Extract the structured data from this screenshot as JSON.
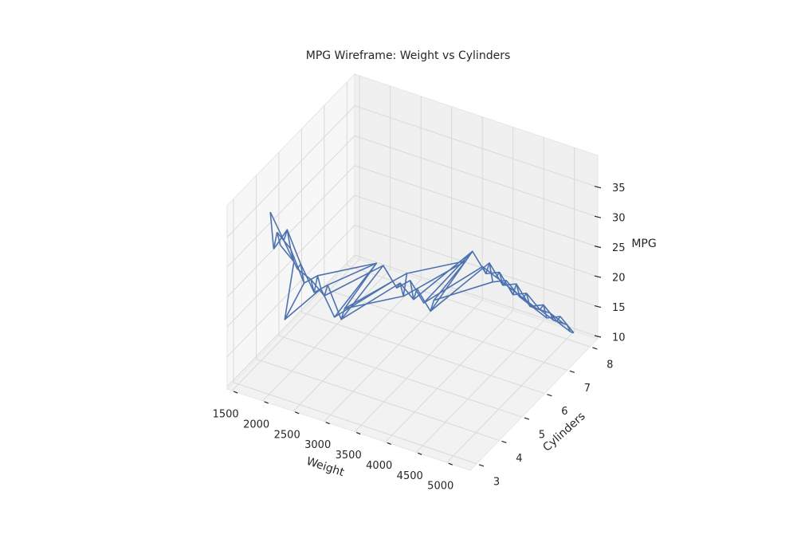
{
  "chart_data": {
    "type": "wireframe",
    "title": "MPG Wireframe: Weight vs Cylinders",
    "x_label": "Weight",
    "y_label": "Cylinders",
    "z_label": "MPG",
    "color": "#4c72b0",
    "grid": true,
    "xlim": [
      1420,
      5380
    ],
    "ylim": [
      2.72,
      8.34
    ],
    "zlim": [
      9.6,
      40.3
    ],
    "xticks": [
      1500,
      2000,
      2500,
      3000,
      3500,
      4000,
      4500,
      5000
    ],
    "yticks": [
      3,
      4,
      5,
      6,
      7,
      8
    ],
    "zticks": [
      10,
      15,
      20,
      25,
      30,
      35
    ],
    "x": [
      [
        1650,
        1870,
        2090,
        2310,
        2530,
        2750,
        2970,
        3190,
        3410,
        3630,
        3850,
        4070,
        4290,
        4510,
        4730,
        4950
      ],
      [
        1705,
        1925,
        2145,
        2365,
        2585,
        2805,
        3025,
        3245,
        3465,
        3685,
        3905,
        4125,
        4345,
        4565,
        4785,
        5005
      ],
      [
        1760,
        1980,
        2200,
        2420,
        2640,
        2860,
        3080,
        3300,
        3520,
        3740,
        3960,
        4180,
        4400,
        4620,
        4840,
        5060
      ],
      [
        1815,
        2035,
        2255,
        2475,
        2695,
        2915,
        3135,
        3355,
        3575,
        3795,
        4015,
        4235,
        4455,
        4675,
        4895,
        5115
      ]
    ],
    "y": [
      [
        4,
        4,
        4,
        4,
        4,
        6,
        6,
        6,
        6,
        8,
        8,
        8,
        8,
        8,
        8,
        8
      ],
      [
        4,
        4,
        4,
        4,
        4,
        4,
        6,
        6,
        8,
        8,
        8,
        8,
        8,
        8,
        8,
        8
      ],
      [
        4,
        4,
        4,
        4,
        6,
        4,
        6,
        6,
        6,
        8,
        8,
        8,
        8,
        8,
        8,
        8
      ],
      [
        4,
        4,
        3,
        4,
        4,
        6,
        6,
        8,
        6,
        8,
        8,
        8,
        8,
        8,
        8,
        8
      ]
    ],
    "z": [
      [
        35,
        31,
        27,
        26,
        24,
        22,
        19,
        21,
        18,
        17,
        16,
        15,
        14,
        13,
        13,
        12
      ],
      [
        29,
        33,
        28,
        24,
        26,
        21,
        20,
        18,
        19,
        16,
        17,
        14,
        15,
        13,
        12,
        12
      ],
      [
        32,
        30,
        25,
        27,
        22,
        23,
        18,
        20,
        17,
        18,
        15,
        16,
        13,
        14,
        12,
        11
      ],
      [
        30,
        28,
        23,
        25,
        21,
        20,
        22,
        17,
        19,
        15,
        16,
        14,
        13,
        12,
        13,
        11
      ]
    ]
  }
}
